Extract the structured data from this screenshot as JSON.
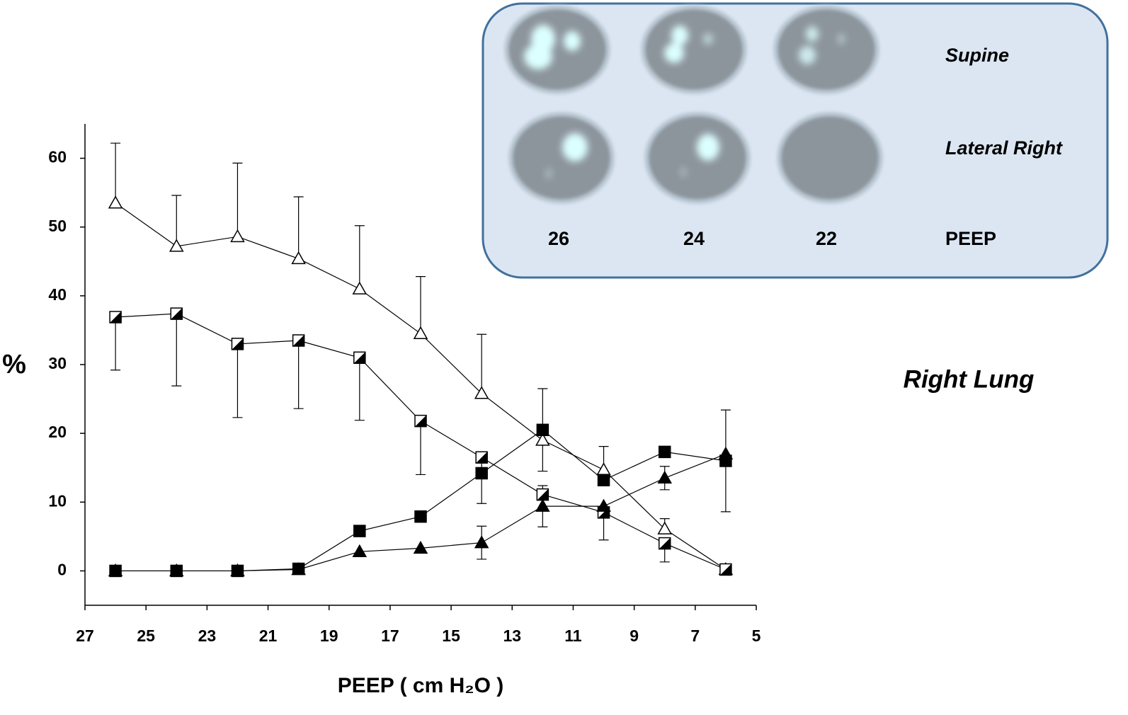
{
  "chart_data": {
    "type": "line",
    "ylabel": "%",
    "xlabel": "PEEP ( cm H₂O )",
    "annotation": "Right Lung",
    "x": [
      26,
      24,
      22,
      20,
      18,
      16,
      14,
      12,
      10,
      8,
      6
    ],
    "xlim": [
      27,
      5
    ],
    "xticks": [
      27,
      25,
      23,
      21,
      19,
      17,
      15,
      13,
      11,
      9,
      7,
      5
    ],
    "ylim": [
      -5,
      65
    ],
    "yticks": [
      0,
      10,
      20,
      30,
      40,
      50,
      60
    ],
    "grid": false,
    "series": [
      {
        "marker": "open-triangle",
        "color": "#000000",
        "error_direction": "up",
        "values": [
          53.5,
          47.2,
          48.6,
          45.4,
          41.0,
          34.5,
          25.8,
          19.0,
          14.7,
          6.1,
          0.2
        ],
        "errors": [
          8.7,
          7.4,
          10.7,
          9.0,
          9.2,
          8.3,
          8.6,
          null,
          3.4,
          1.5,
          null
        ]
      },
      {
        "marker": "half-square",
        "color": "#000000",
        "error_direction": "down",
        "values": [
          36.9,
          37.4,
          33.0,
          33.5,
          31.0,
          21.8,
          16.5,
          11.1,
          8.5,
          4.0,
          0.2
        ],
        "errors": [
          7.7,
          10.5,
          10.7,
          9.9,
          9.1,
          7.8,
          6.7,
          null,
          4.0,
          2.7,
          null
        ]
      },
      {
        "marker": "filled-square",
        "color": "#000000",
        "error_direction": "both",
        "values": [
          0,
          0,
          0,
          0.3,
          5.8,
          7.9,
          14.2,
          20.5,
          13.2,
          17.3,
          16.0
        ],
        "errors": [
          null,
          null,
          null,
          null,
          null,
          null,
          null,
          6.0,
          null,
          null,
          7.4
        ]
      },
      {
        "marker": "filled-triangle",
        "color": "#000000",
        "error_direction": "both",
        "values": [
          0,
          0,
          0,
          0.2,
          2.8,
          3.3,
          4.1,
          9.4,
          9.4,
          13.5,
          17.0
        ],
        "errors": [
          null,
          null,
          null,
          null,
          null,
          null,
          2.4,
          3.0,
          null,
          1.7,
          null
        ]
      }
    ]
  },
  "inset": {
    "rows": [
      "Supine",
      "Lateral Right"
    ],
    "columns": [
      "26",
      "24",
      "22"
    ],
    "column_axis": "PEEP"
  }
}
